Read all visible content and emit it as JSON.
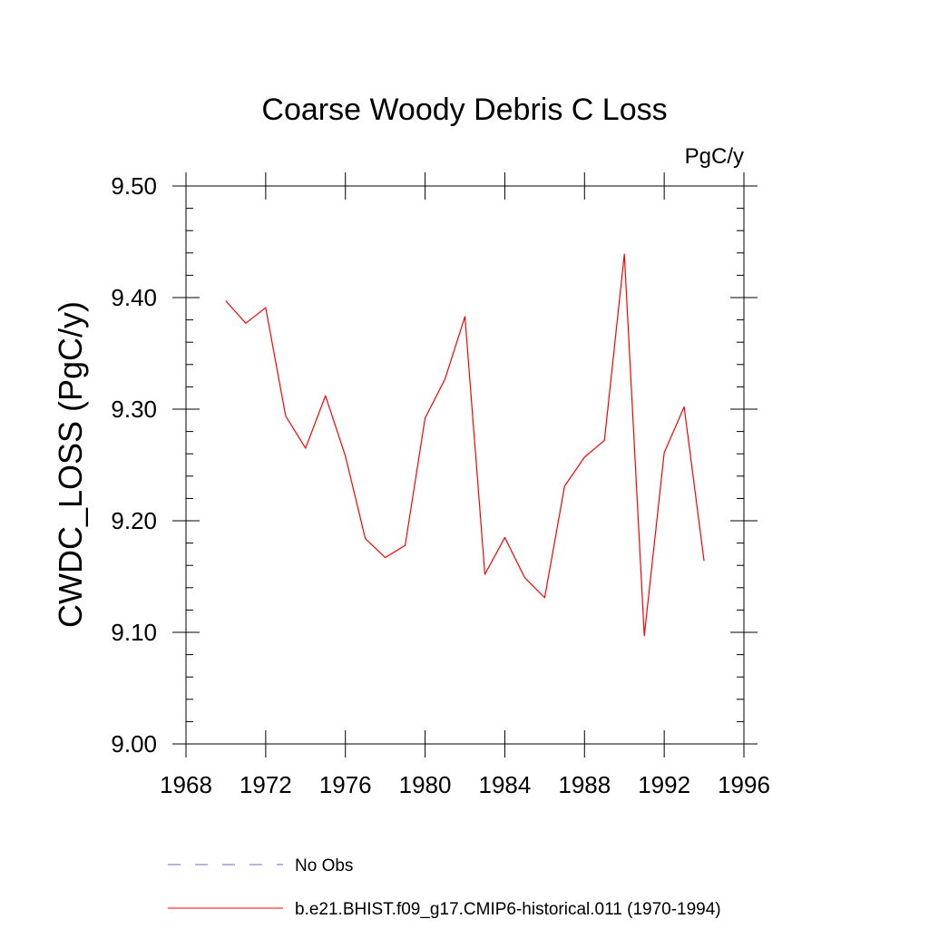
{
  "chart_data": {
    "type": "line",
    "title": "Coarse Woody Debris C Loss",
    "units": "PgC/y",
    "ylabel": "CWDC_LOSS  (PgC/y)",
    "xlabel": "",
    "xlim": [
      1968,
      1996
    ],
    "ylim": [
      9.0,
      9.5
    ],
    "x_ticks": [
      1968,
      1972,
      1976,
      1980,
      1984,
      1988,
      1992,
      1996
    ],
    "x_tick_labels": [
      "1968",
      "1972",
      "1976",
      "1980",
      "1984",
      "1988",
      "1992",
      "1996"
    ],
    "y_ticks": [
      9.0,
      9.1,
      9.2,
      9.3,
      9.4,
      9.5
    ],
    "y_tick_labels": [
      "9.00",
      "9.10",
      "9.20",
      "9.30",
      "9.40",
      "9.50"
    ],
    "grid": false,
    "legend_position": "bottom",
    "series": [
      {
        "name": "b.e21.BHIST.f09_g17.CMIP6-historical.011 (1970-1994)",
        "color": "#ff0000",
        "style": "solid",
        "x": [
          1970,
          1971,
          1972,
          1973,
          1974,
          1975,
          1976,
          1977,
          1978,
          1979,
          1980,
          1981,
          1982,
          1983,
          1984,
          1985,
          1986,
          1987,
          1988,
          1989,
          1990,
          1991,
          1992,
          1993,
          1994
        ],
        "y": [
          9.397,
          9.377,
          9.391,
          9.294,
          9.265,
          9.312,
          9.258,
          9.184,
          9.167,
          9.178,
          9.292,
          9.327,
          9.383,
          9.152,
          9.185,
          9.149,
          9.131,
          9.231,
          9.257,
          9.272,
          9.439,
          9.097,
          9.261,
          9.302,
          9.164
        ]
      }
    ],
    "legend": [
      {
        "label": "No Obs",
        "color": "#6a6acd",
        "style": "dashed"
      },
      {
        "label": "b.e21.BHIST.f09_g17.CMIP6-historical.011 (1970-1994)",
        "color": "#ff0000",
        "style": "solid"
      }
    ]
  }
}
